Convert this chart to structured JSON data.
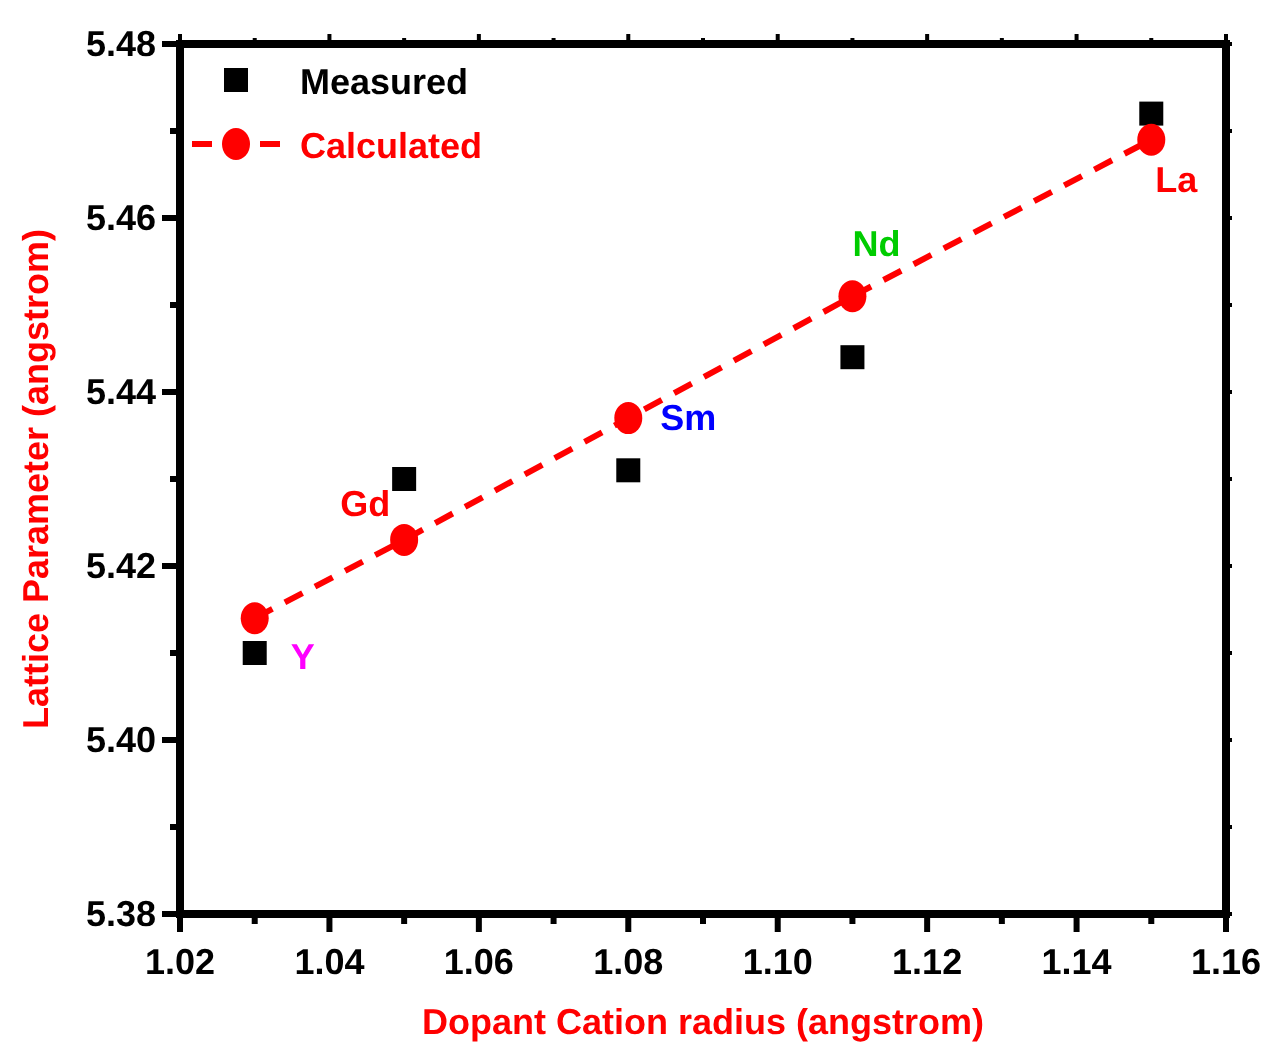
{
  "chart_data": {
    "type": "scatter",
    "xlabel": "Dopant Cation radius (angstrom)",
    "ylabel": "Lattice Parameter (angstrom)",
    "xlim": [
      1.02,
      1.16
    ],
    "ylim": [
      5.38,
      5.48
    ],
    "xticks": [
      {
        "value": 1.02,
        "label": "1.02"
      },
      {
        "value": 1.03,
        "label": null
      },
      {
        "value": 1.04,
        "label": "1.04"
      },
      {
        "value": 1.05,
        "label": null
      },
      {
        "value": 1.06,
        "label": "1.06"
      },
      {
        "value": 1.07,
        "label": null
      },
      {
        "value": 1.08,
        "label": "1.08"
      },
      {
        "value": 1.09,
        "label": null
      },
      {
        "value": 1.1,
        "label": "1.10"
      },
      {
        "value": 1.11,
        "label": null
      },
      {
        "value": 1.12,
        "label": "1.12"
      },
      {
        "value": 1.13,
        "label": null
      },
      {
        "value": 1.14,
        "label": "1.14"
      },
      {
        "value": 1.15,
        "label": null
      },
      {
        "value": 1.16,
        "label": "1.16"
      }
    ],
    "yticks": [
      {
        "value": 5.38,
        "label": "5.38"
      },
      {
        "value": 5.39,
        "label": null
      },
      {
        "value": 5.4,
        "label": "5.40"
      },
      {
        "value": 5.41,
        "label": null
      },
      {
        "value": 5.42,
        "label": "5.42"
      },
      {
        "value": 5.43,
        "label": null
      },
      {
        "value": 5.44,
        "label": "5.44"
      },
      {
        "value": 5.45,
        "label": null
      },
      {
        "value": 5.46,
        "label": "5.46"
      },
      {
        "value": 5.47,
        "label": null
      },
      {
        "value": 5.48,
        "label": "5.48"
      }
    ],
    "legend": "top left",
    "grid": false,
    "series": [
      {
        "name": "Measured",
        "type": "scatter",
        "marker": "square",
        "color": "#000000",
        "x": [
          1.03,
          1.05,
          1.08,
          1.11,
          1.15
        ],
        "values": [
          5.41,
          5.43,
          5.431,
          5.444,
          5.472
        ]
      },
      {
        "name": "Calculated",
        "type": "line",
        "marker": "circle",
        "line_style": "dashed",
        "color": "#ff0000",
        "x": [
          1.03,
          1.05,
          1.08,
          1.11,
          1.15
        ],
        "values": [
          5.414,
          5.423,
          5.437,
          5.451,
          5.469
        ]
      }
    ],
    "annotations": [
      {
        "text": "Y",
        "x": 1.03,
        "y": 5.41
      },
      {
        "text": "Gd",
        "x": 1.05,
        "y": 5.423
      },
      {
        "text": "Sm",
        "x": 1.08,
        "y": 5.437
      },
      {
        "text": "Nd",
        "x": 1.11,
        "y": 5.451
      },
      {
        "text": "La",
        "x": 1.15,
        "y": 5.469
      }
    ]
  }
}
